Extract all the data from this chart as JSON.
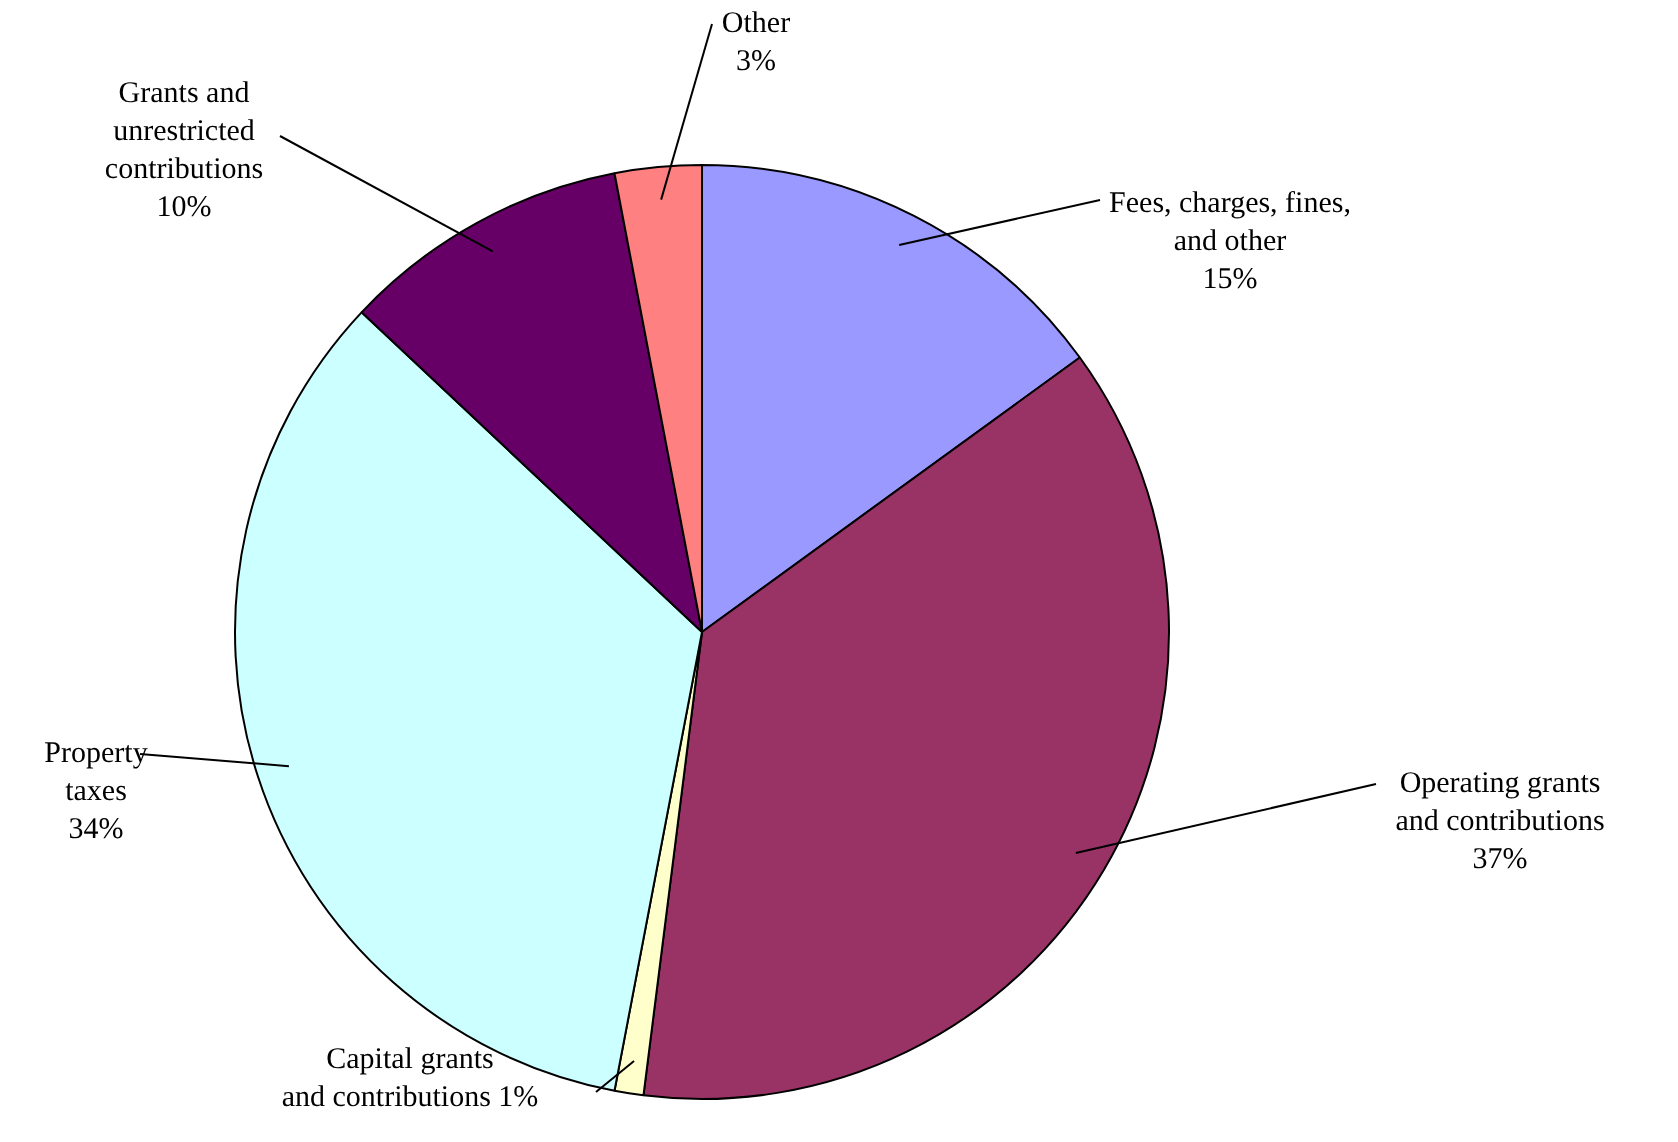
{
  "chart_data": {
    "type": "pie",
    "categories": [
      "Fees, charges, fines, and other",
      "Operating grants and contributions",
      "Capital grants and contributions",
      "Property taxes",
      "Grants and unrestricted contributions",
      "Other"
    ],
    "values": [
      15,
      37,
      1,
      34,
      10,
      3
    ],
    "colors": [
      "#9999ff",
      "#993366",
      "#ffffcc",
      "#ccffff",
      "#660066",
      "#ff8080"
    ],
    "value_labels": [
      "15%",
      "37%",
      "1%",
      "34%",
      "10%",
      "3%"
    ]
  }
}
